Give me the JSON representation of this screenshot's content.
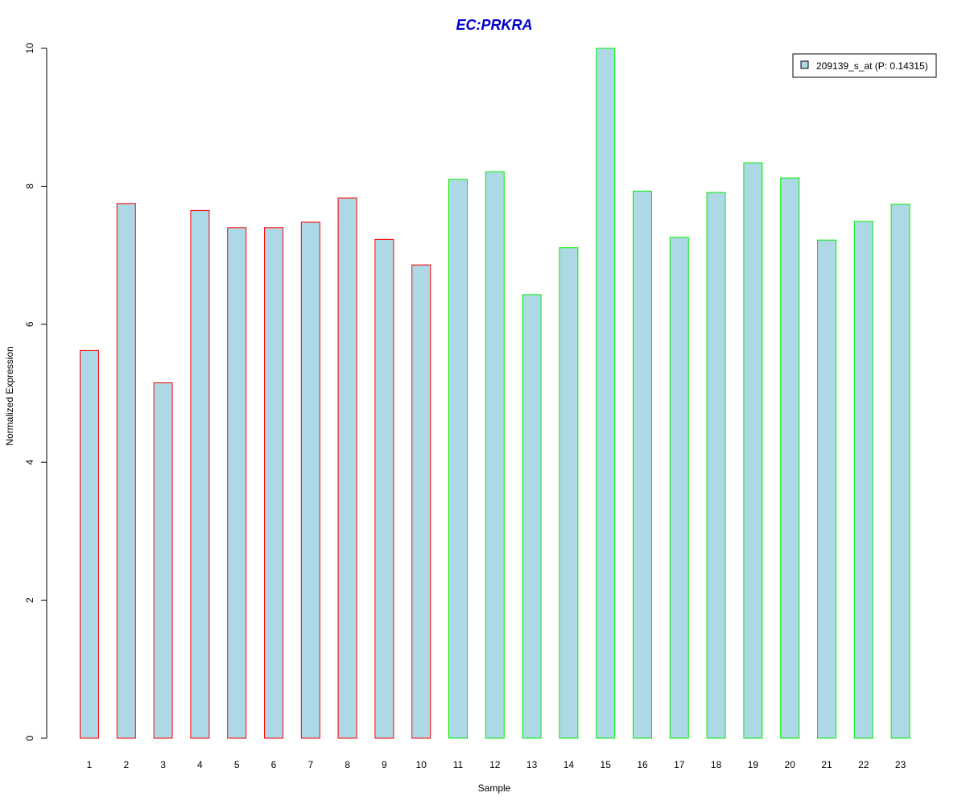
{
  "chart_data": {
    "type": "bar",
    "title": "EC:PRKRA",
    "xlabel": "Sample",
    "ylabel": "Normalized Expression",
    "categories": [
      "1",
      "2",
      "3",
      "4",
      "5",
      "6",
      "7",
      "8",
      "9",
      "10",
      "11",
      "12",
      "13",
      "14",
      "15",
      "16",
      "17",
      "18",
      "19",
      "20",
      "21",
      "22",
      "23"
    ],
    "series": [
      {
        "name": "209139_s_at (P: 0.14315)",
        "values": [
          5.62,
          7.75,
          5.15,
          7.65,
          7.4,
          7.4,
          7.48,
          7.83,
          7.23,
          6.86,
          8.1,
          8.21,
          6.43,
          7.11,
          10.0,
          7.93,
          7.26,
          7.91,
          8.34,
          8.12,
          7.22,
          7.49,
          7.74
        ]
      }
    ],
    "group_border_colors": [
      "#ff0000",
      "#ff0000",
      "#ff0000",
      "#ff0000",
      "#ff0000",
      "#ff0000",
      "#ff0000",
      "#ff0000",
      "#ff0000",
      "#ff0000",
      "#00ee00",
      "#00ee00",
      "#00ee00",
      "#00ee00",
      "#00ee00",
      "#00ee00",
      "#00ee00",
      "#00ee00",
      "#00ee00",
      "#00ee00",
      "#00ee00",
      "#00ee00",
      "#00ee00"
    ],
    "ylim": [
      0,
      10
    ],
    "yticks": [
      "0",
      "2",
      "4",
      "6",
      "8",
      "10"
    ],
    "fill_color": "#add8e6",
    "title_color": "#0000cd",
    "legend_position": "top-right",
    "grid": false
  }
}
